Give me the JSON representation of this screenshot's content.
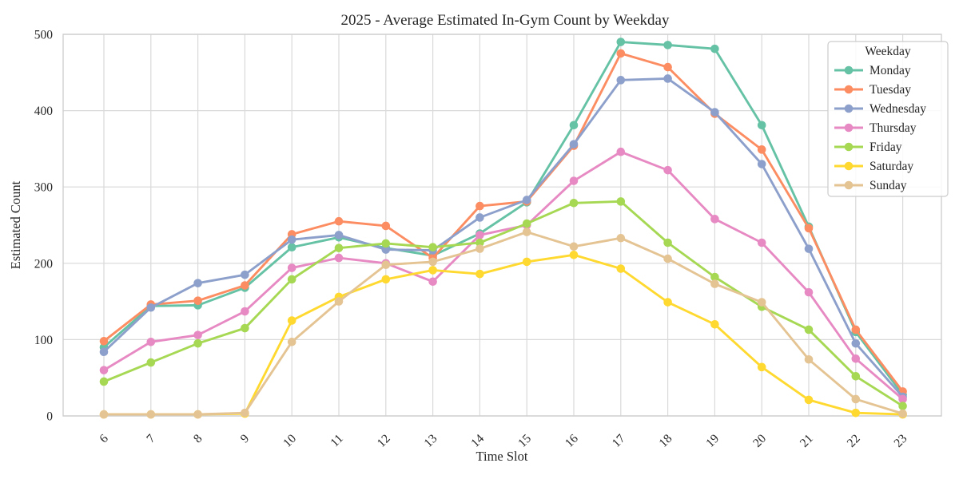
{
  "chart_data": {
    "type": "line",
    "title": "2025 - Average Estimated In-Gym Count by Weekday",
    "xlabel": "Time Slot",
    "ylabel": "Estimated Count",
    "x": [
      6,
      7,
      8,
      9,
      10,
      11,
      12,
      13,
      14,
      15,
      16,
      17,
      18,
      19,
      20,
      21,
      22,
      23
    ],
    "xtick_labels": [
      "6",
      "7",
      "8",
      "9",
      "10",
      "11",
      "12",
      "13",
      "14",
      "15",
      "16",
      "17",
      "18",
      "19",
      "20",
      "21",
      "22",
      "23"
    ],
    "yticks": [
      0,
      100,
      200,
      300,
      400,
      500
    ],
    "ylim": [
      0,
      500
    ],
    "grid": true,
    "background": "#ffffff",
    "grid_color": "#d9d9d9",
    "text_color": "#262626",
    "legend": {
      "title": "Weekday",
      "position": "upper-right"
    },
    "series": [
      {
        "name": "Monday",
        "color": "#66c2a5",
        "values": [
          90,
          144,
          145,
          168,
          221,
          234,
          220,
          210,
          239,
          280,
          381,
          490,
          486,
          481,
          381,
          248,
          110,
          28
        ]
      },
      {
        "name": "Tuesday",
        "color": "#fc8d62",
        "values": [
          98,
          146,
          151,
          171,
          238,
          255,
          249,
          207,
          275,
          281,
          354,
          475,
          457,
          396,
          349,
          246,
          113,
          32
        ]
      },
      {
        "name": "Wednesday",
        "color": "#8da0cb",
        "values": [
          84,
          142,
          174,
          185,
          231,
          237,
          218,
          217,
          260,
          283,
          356,
          440,
          442,
          398,
          330,
          219,
          95,
          25
        ]
      },
      {
        "name": "Thursday",
        "color": "#e78ac3",
        "values": [
          60,
          97,
          106,
          137,
          194,
          207,
          200,
          176,
          237,
          250,
          308,
          346,
          322,
          258,
          227,
          162,
          75,
          22
        ]
      },
      {
        "name": "Friday",
        "color": "#a6d854",
        "values": [
          45,
          70,
          95,
          115,
          179,
          220,
          226,
          221,
          227,
          252,
          279,
          281,
          227,
          182,
          143,
          113,
          52,
          13
        ]
      },
      {
        "name": "Saturday",
        "color": "#ffd92f",
        "values": [
          2,
          2,
          2,
          3,
          125,
          156,
          179,
          191,
          186,
          202,
          211,
          193,
          149,
          120,
          64,
          21,
          4,
          2
        ]
      },
      {
        "name": "Sunday",
        "color": "#e5c494",
        "values": [
          2,
          2,
          2,
          4,
          97,
          150,
          198,
          202,
          219,
          241,
          222,
          233,
          206,
          173,
          149,
          74,
          22,
          3
        ]
      }
    ]
  }
}
